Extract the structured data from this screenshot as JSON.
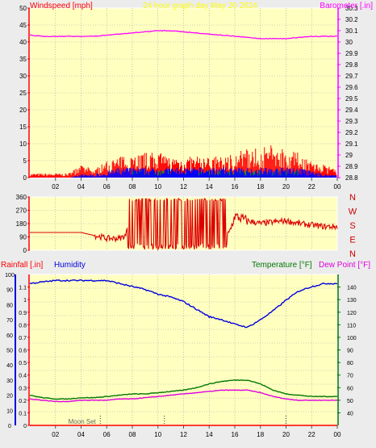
{
  "colors": {
    "background": "#ececec",
    "plot_bg": "#ffffc0",
    "grid": "#a0a0a0",
    "wind_speed": "#ff0000",
    "wind_gust_mid": "#00a000",
    "wind_low": "#0000ff",
    "barometer": "#ff00ff",
    "direction": "#dd0000",
    "humidity": "#0000dd",
    "temperature": "#007700",
    "dewpoint": "#dd00dd",
    "rain": "#ff0000",
    "title": "#ffff00"
  },
  "chart_data": [
    {
      "type": "line",
      "id": "wind_baro",
      "title": "24 hour graph day   May 20 2024",
      "ylabel_left": "Windspeed [mph]",
      "ylabel_right": "Barometer [.in]",
      "xticks": [
        "02",
        "04",
        "06",
        "08",
        "10",
        "12",
        "14",
        "16",
        "18",
        "20",
        "22",
        "00"
      ],
      "ylim_left": [
        0,
        50
      ],
      "yticks_left": [
        "0",
        "5",
        "10",
        "15",
        "20",
        "25",
        "30",
        "35",
        "40",
        "45",
        "50"
      ],
      "ylim_right": [
        28.8,
        30.3
      ],
      "yticks_right": [
        "28.8",
        "28.9",
        "29",
        "29.1",
        "29.2",
        "29.3",
        "29.4",
        "29.5",
        "29.6",
        "29.7",
        "29.8",
        "29.9",
        "30",
        "30.1",
        "30.2",
        "30.3"
      ],
      "grid": true,
      "hours": [
        0,
        1,
        2,
        3,
        4,
        5,
        6,
        7,
        8,
        9,
        10,
        11,
        12,
        13,
        14,
        15,
        16,
        17,
        18,
        19,
        20,
        21,
        22,
        23,
        24
      ],
      "barometer": [
        30.06,
        30.05,
        30.05,
        30.05,
        30.05,
        30.05,
        30.06,
        30.07,
        30.08,
        30.09,
        30.1,
        30.1,
        30.09,
        30.08,
        30.07,
        30.06,
        30.05,
        30.04,
        30.03,
        30.03,
        30.03,
        30.04,
        30.05,
        30.05,
        30.05
      ],
      "wind_speed_max": [
        1,
        1,
        1,
        1,
        3,
        2,
        4,
        5,
        6,
        6,
        6,
        5,
        5,
        5,
        5,
        5,
        6,
        7,
        7,
        8,
        7,
        6,
        4,
        3,
        2
      ],
      "wind_avg_max": [
        0,
        0,
        0,
        0,
        1,
        1,
        2,
        3,
        3,
        3,
        3,
        3,
        3,
        3,
        3,
        3,
        3,
        3,
        3,
        3,
        3,
        3,
        2,
        1,
        1
      ]
    },
    {
      "type": "line",
      "id": "wind_direction",
      "ylim": [
        0,
        360
      ],
      "yticks": [
        "0",
        "90",
        "180",
        "270",
        "360"
      ],
      "compass_labels": [
        "N",
        "W",
        "S",
        "E",
        "N"
      ],
      "hours": [
        0,
        2,
        4,
        5,
        5.6,
        6,
        7,
        7.5,
        8,
        9,
        10,
        11,
        12,
        13,
        14,
        15,
        15.5,
        16,
        17,
        18,
        19,
        20,
        21,
        22,
        23,
        24
      ],
      "direction": [
        120,
        120,
        120,
        100,
        90,
        80,
        80,
        100,
        330,
        200,
        280,
        150,
        310,
        200,
        330,
        160,
        100,
        230,
        200,
        180,
        190,
        200,
        180,
        170,
        160,
        160
      ]
    },
    {
      "type": "line",
      "id": "rain_hum_temp",
      "ylabel_left1": "Rainfall [.in]",
      "ylabel_left2": "Humidity",
      "ylabel_right1": "Temperature [°F]",
      "ylabel_right2": "Dew Point [°F]",
      "xticks": [
        "02",
        "04",
        "06",
        "08",
        "10",
        "12",
        "14",
        "16",
        "18",
        "20",
        "22",
        "00"
      ],
      "ylim_humidity": [
        0,
        100
      ],
      "yticks_humidity": [
        "0",
        "10",
        "20",
        "30",
        "40",
        "50",
        "60",
        "70",
        "80",
        "90",
        "100"
      ],
      "ylim_rain": [
        0,
        1.2
      ],
      "yticks_rain": [
        "0",
        "0.1",
        "0.2",
        "0.3",
        "0.4",
        "0.5",
        "0.6",
        "0.7",
        "0.8",
        "0.9",
        "1",
        "1.1"
      ],
      "ylim_temp": [
        30,
        150
      ],
      "yticks_temp": [
        "40",
        "50",
        "60",
        "70",
        "80",
        "90",
        "100",
        "110",
        "120",
        "130",
        "140"
      ],
      "annotation": "Moon Set",
      "grid": true,
      "hours": [
        0,
        1,
        2,
        3,
        4,
        5,
        6,
        7,
        8,
        9,
        10,
        11,
        12,
        13,
        14,
        15,
        16,
        17,
        18,
        19,
        20,
        21,
        22,
        23,
        24
      ],
      "humidity": [
        94,
        95,
        96,
        96,
        96,
        96,
        96,
        94,
        92,
        90,
        87,
        85,
        82,
        77,
        72,
        70,
        67,
        65,
        70,
        76,
        83,
        89,
        92,
        94,
        94
      ],
      "temperature": [
        54,
        52,
        51,
        51,
        52,
        52,
        53,
        54,
        55,
        55,
        56,
        57,
        58,
        60,
        63,
        65,
        66,
        66,
        63,
        58,
        55,
        54,
        53,
        53,
        53
      ],
      "dewpoint": [
        51,
        50,
        49,
        49,
        50,
        50,
        50,
        51,
        51,
        52,
        53,
        54,
        55,
        56,
        57,
        58,
        58,
        58,
        56,
        53,
        51,
        50,
        50,
        50,
        50
      ],
      "rainfall": [
        0,
        0,
        0,
        0,
        0,
        0,
        0,
        0,
        0,
        0,
        0,
        0,
        0,
        0,
        0,
        0,
        0,
        0,
        0,
        0,
        0,
        0,
        0,
        0,
        0
      ]
    }
  ]
}
